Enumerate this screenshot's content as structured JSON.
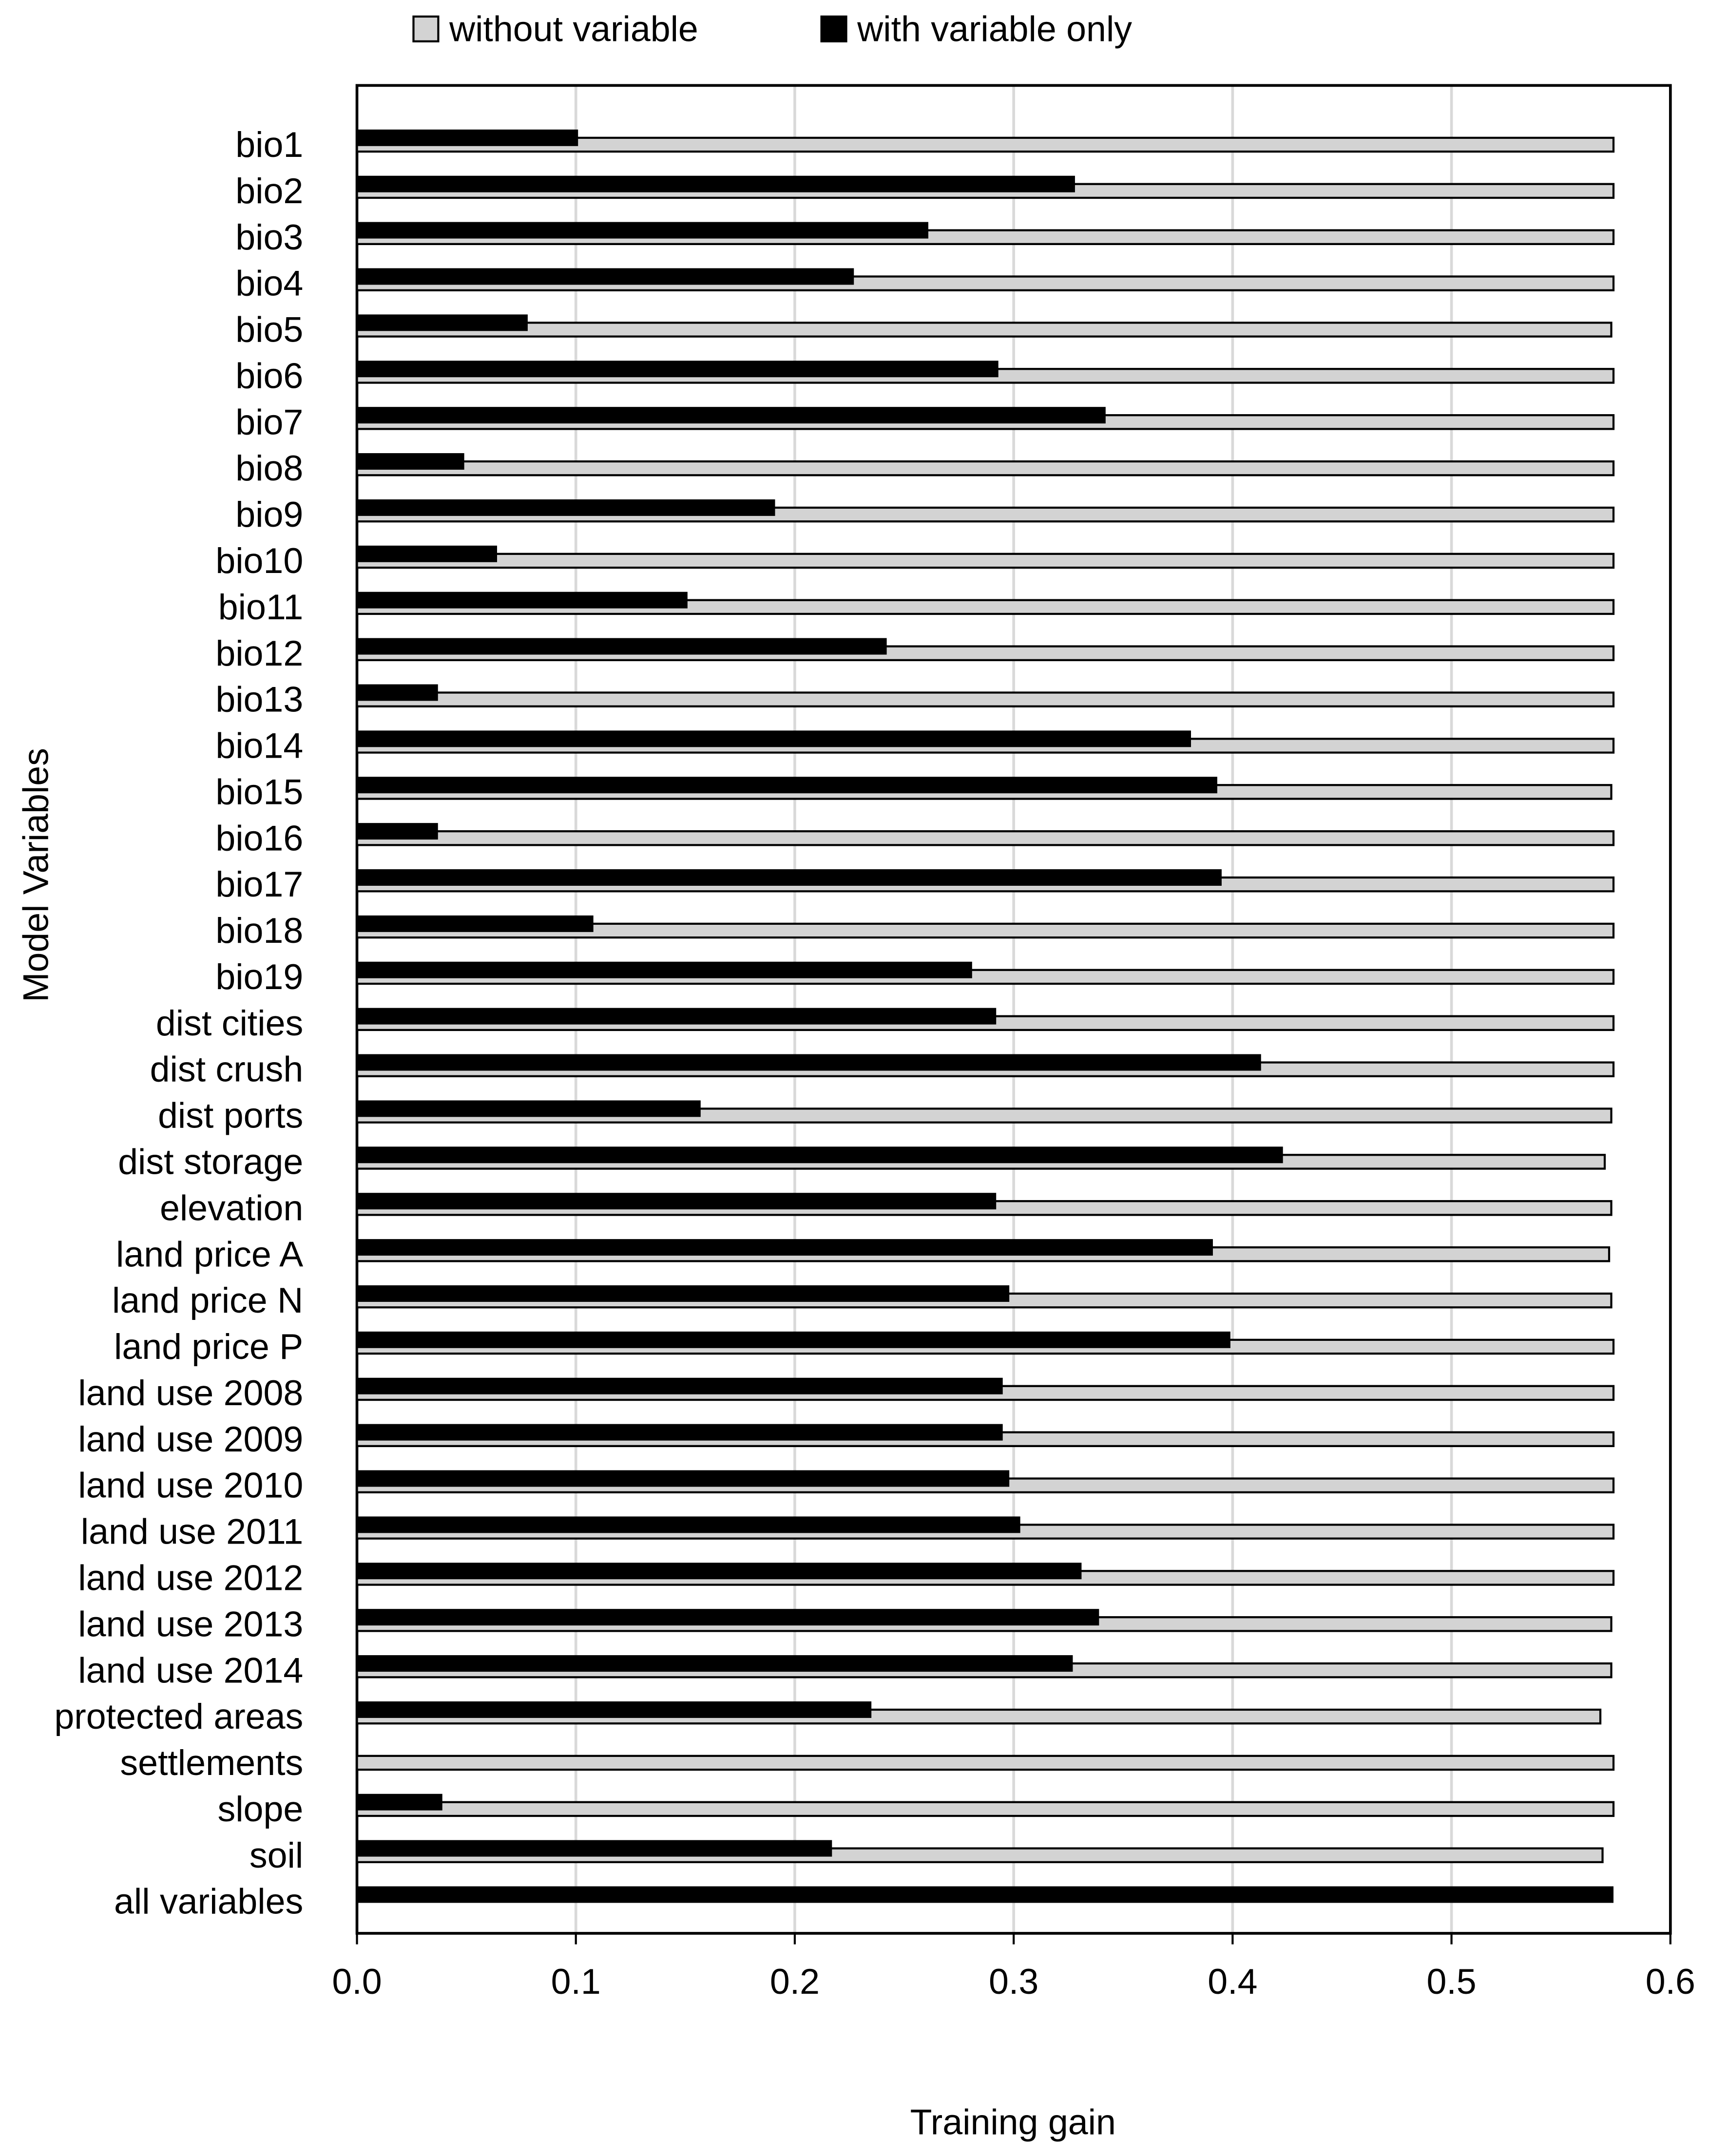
{
  "chart_data": {
    "type": "bar",
    "orientation": "horizontal",
    "x_label": "Training gain",
    "y_label": "Model Variables",
    "categories": [
      "bio1",
      "bio2",
      "bio3",
      "bio4",
      "bio5",
      "bio6",
      "bio7",
      "bio8",
      "bio9",
      "bio10",
      "bio11",
      "bio12",
      "bio13",
      "bio14",
      "bio15",
      "bio16",
      "bio17",
      "bio18",
      "bio19",
      "dist cities",
      "dist crush",
      "dist ports",
      "dist storage",
      "elevation",
      "land price A",
      "land price N",
      "land price P",
      "land use 2008",
      "land use 2009",
      "land use 2010",
      "land use 2011",
      "land use 2012",
      "land use 2013",
      "land use 2014",
      "protected areas",
      "settlements",
      "slope",
      "soil",
      "all variables"
    ],
    "series": [
      {
        "name": "without variable",
        "color": "#d3d3d3",
        "values": [
          0.574,
          0.574,
          0.574,
          0.574,
          0.573,
          0.574,
          0.574,
          0.574,
          0.574,
          0.574,
          0.574,
          0.574,
          0.574,
          0.574,
          0.573,
          0.574,
          0.574,
          0.574,
          0.574,
          0.574,
          0.574,
          0.573,
          0.57,
          0.573,
          0.572,
          0.573,
          0.574,
          0.574,
          0.574,
          0.574,
          0.574,
          0.574,
          0.573,
          0.573,
          0.568,
          0.574,
          0.574,
          0.569,
          null
        ]
      },
      {
        "name": "with variable only",
        "color": "#000000",
        "values": [
          0.101,
          0.328,
          0.261,
          0.227,
          0.078,
          0.293,
          0.342,
          0.049,
          0.191,
          0.064,
          0.151,
          0.242,
          0.037,
          0.381,
          0.393,
          0.037,
          0.395,
          0.108,
          0.281,
          0.292,
          0.413,
          0.157,
          0.423,
          0.292,
          0.391,
          0.298,
          0.399,
          0.295,
          0.295,
          0.298,
          0.303,
          0.331,
          0.339,
          0.327,
          0.235,
          0,
          0.039,
          0.217,
          0.574
        ]
      }
    ],
    "xlim": [
      0,
      0.6
    ],
    "xticks": [
      {
        "value": 0,
        "label": "0.0"
      },
      0.1,
      0.2,
      0.3,
      0.4,
      0.5,
      0.6
    ],
    "grid": true,
    "legend": "top"
  }
}
